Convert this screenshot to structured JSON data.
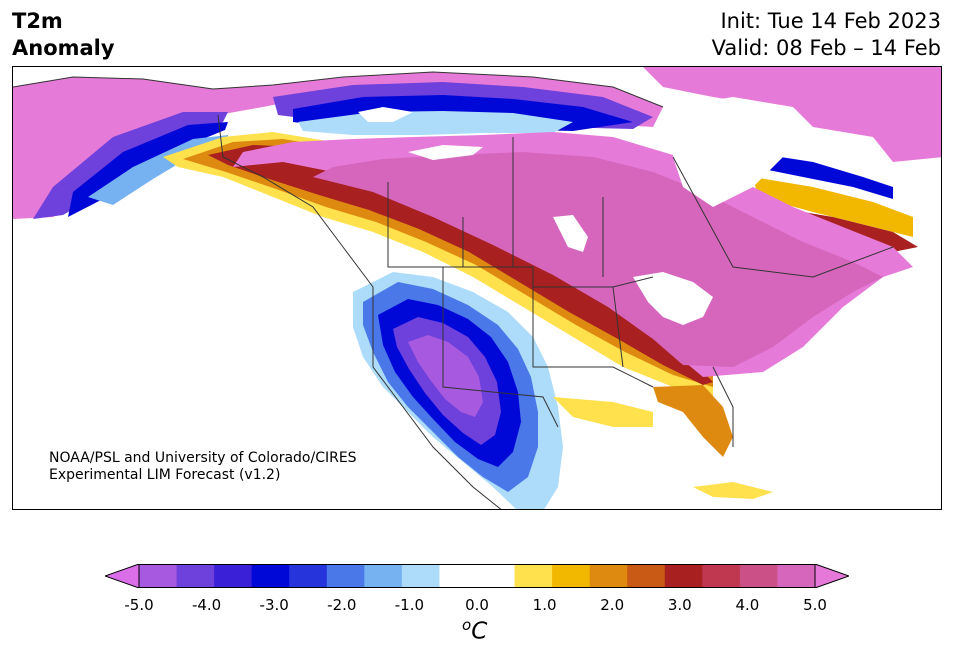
{
  "header": {
    "title_line1": "T2m",
    "title_line2": "Anomaly",
    "init": "Init: Tue 14 Feb 2023",
    "valid": "Valid: 08 Feb – 14 Feb"
  },
  "credit": {
    "line1": "NOAA/PSL and University of Colorado/CIRES",
    "line2": "Experimental LIM Forecast (v1.2)"
  },
  "colorbar": {
    "unit_base": "C",
    "unit_sup": "o",
    "colors": [
      "#d96ee8",
      "#a75ae0",
      "#6e40dc",
      "#3a20d6",
      "#0008d8",
      "#2634dc",
      "#4a78e8",
      "#76b2f2",
      "#acdcfa",
      "#ffffff",
      "#ffffff",
      "#ffe14e",
      "#f2b800",
      "#de8a10",
      "#c85a16",
      "#a82020",
      "#c03850",
      "#cc5088",
      "#d666bc",
      "#e578d8"
    ],
    "ticks": [
      "-5.0",
      "-4.0",
      "-3.0",
      "-2.0",
      "-1.0",
      "0.0",
      "1.0",
      "2.0",
      "3.0",
      "4.0",
      "5.0"
    ]
  },
  "map_colors": {
    "pink": "#e67ad8",
    "magenta_hot": "#d666bc",
    "dark_red": "#a82020",
    "orange": "#de8a10",
    "yellow": "#ffe14e",
    "violet": "#a75ae0",
    "purple": "#6e40dc",
    "blue": "#0008d8",
    "mid_blue": "#4a78e8",
    "light_blue": "#acdcfa",
    "white": "#ffffff",
    "border": "#333333"
  }
}
